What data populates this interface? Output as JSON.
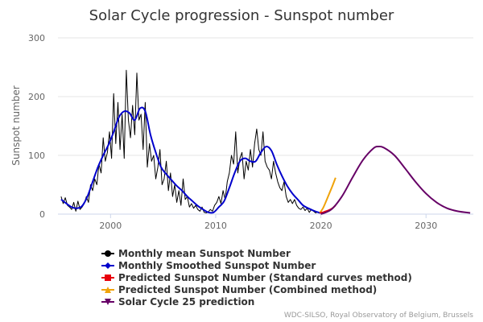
{
  "chart_data": {
    "type": "line",
    "title": "Solar Cycle progression - Sunspot number",
    "xlabel": "",
    "ylabel": "Sunspot number",
    "xlim": [
      1995.0,
      2034.5
    ],
    "ylim": [
      0,
      300
    ],
    "x_ticks": [
      "2000",
      "2010",
      "2020",
      "2030"
    ],
    "x_tick_values": [
      2000,
      2010,
      2020,
      2030
    ],
    "y_ticks": [
      "0",
      "100",
      "200",
      "300"
    ],
    "y_tick_values": [
      0,
      100,
      200,
      300
    ],
    "grid": true,
    "legend_position": "bottom-center",
    "credits": "WDC-SILSO, Royal Observatory of Belgium, Brussels",
    "series": [
      {
        "name": "Monthly mean Sunspot Number",
        "color": "#000000",
        "marker": "circle",
        "x": [
          1995.3,
          1995.5,
          1995.7,
          1995.9,
          1996.1,
          1996.3,
          1996.5,
          1996.7,
          1996.9,
          1997.1,
          1997.3,
          1997.5,
          1997.7,
          1997.9,
          1998.1,
          1998.3,
          1998.5,
          1998.7,
          1998.9,
          1999.1,
          1999.3,
          1999.5,
          1999.7,
          1999.9,
          2000.1,
          2000.3,
          2000.5,
          2000.7,
          2000.9,
          2001.1,
          2001.3,
          2001.5,
          2001.7,
          2001.9,
          2002.1,
          2002.3,
          2002.5,
          2002.7,
          2002.9,
          2003.1,
          2003.3,
          2003.5,
          2003.7,
          2003.9,
          2004.1,
          2004.3,
          2004.5,
          2004.7,
          2004.9,
          2005.1,
          2005.3,
          2005.5,
          2005.7,
          2005.9,
          2006.1,
          2006.3,
          2006.5,
          2006.7,
          2006.9,
          2007.1,
          2007.3,
          2007.5,
          2007.7,
          2007.9,
          2008.1,
          2008.3,
          2008.5,
          2008.7,
          2008.9,
          2009.1,
          2009.3,
          2009.5,
          2009.7,
          2009.9,
          2010.1,
          2010.3,
          2010.5,
          2010.7,
          2010.9,
          2011.1,
          2011.3,
          2011.5,
          2011.7,
          2011.9,
          2012.1,
          2012.3,
          2012.5,
          2012.7,
          2012.9,
          2013.1,
          2013.3,
          2013.5,
          2013.7,
          2013.9,
          2014.1,
          2014.3,
          2014.5,
          2014.7,
          2014.9,
          2015.1,
          2015.3,
          2015.5,
          2015.7,
          2015.9,
          2016.1,
          2016.3,
          2016.5,
          2016.7,
          2016.9,
          2017.1,
          2017.3,
          2017.5,
          2017.7,
          2017.9,
          2018.1,
          2018.3,
          2018.5,
          2018.7,
          2018.9,
          2019.1,
          2019.3,
          2019.5,
          2019.7,
          2019.9
        ],
        "values": [
          30,
          18,
          28,
          15,
          12,
          8,
          20,
          5,
          22,
          8,
          12,
          18,
          30,
          20,
          50,
          40,
          60,
          50,
          85,
          70,
          130,
          90,
          105,
          140,
          95,
          205,
          120,
          190,
          110,
          170,
          95,
          245,
          160,
          130,
          185,
          135,
          240,
          160,
          170,
          110,
          190,
          80,
          120,
          90,
          100,
          60,
          80,
          110,
          50,
          60,
          90,
          40,
          70,
          30,
          50,
          20,
          40,
          15,
          60,
          25,
          30,
          12,
          18,
          10,
          15,
          8,
          5,
          12,
          3,
          2,
          4,
          8,
          5,
          15,
          20,
          30,
          18,
          40,
          25,
          55,
          70,
          100,
          85,
          140,
          70,
          95,
          105,
          60,
          90,
          75,
          110,
          80,
          120,
          145,
          110,
          100,
          140,
          90,
          80,
          75,
          60,
          90,
          70,
          55,
          45,
          40,
          55,
          30,
          20,
          25,
          18,
          25,
          15,
          10,
          8,
          12,
          6,
          10,
          3,
          8,
          5,
          2,
          4,
          2
        ],
        "x_raw_note": ""
      },
      {
        "name": "Monthly Smoothed Sunspot Number",
        "color": "#0000cc",
        "marker": "diamond",
        "x": [
          1995.3,
          1995.8,
          1996.3,
          1996.8,
          1997.3,
          1997.8,
          1998.3,
          1998.8,
          1999.3,
          1999.8,
          2000.3,
          2000.8,
          2001.3,
          2001.8,
          2002.3,
          2002.8,
          2003.3,
          2003.8,
          2004.3,
          2004.8,
          2005.3,
          2005.8,
          2006.3,
          2006.8,
          2007.3,
          2007.8,
          2008.3,
          2008.8,
          2009.3,
          2009.8,
          2010.3,
          2010.8,
          2011.3,
          2011.8,
          2012.3,
          2012.8,
          2013.3,
          2013.8,
          2014.3,
          2014.8,
          2015.3,
          2015.8,
          2016.3,
          2016.8,
          2017.3,
          2017.8,
          2018.3,
          2018.8,
          2019.3,
          2019.9
        ],
        "values": [
          25,
          18,
          12,
          10,
          14,
          30,
          55,
          80,
          100,
          118,
          140,
          165,
          175,
          172,
          160,
          180,
          175,
          135,
          105,
          80,
          68,
          58,
          48,
          40,
          30,
          22,
          14,
          8,
          3,
          3,
          12,
          22,
          45,
          70,
          90,
          95,
          90,
          90,
          105,
          115,
          108,
          85,
          65,
          48,
          35,
          25,
          15,
          10,
          6,
          2
        ]
      },
      {
        "name": "Predicted Sunspot Number (Standard curves method)",
        "color": "#e8000b",
        "marker": "square",
        "x": [
          2019.9,
          2020.2,
          2020.5,
          2020.8,
          2021.1,
          2021.4
        ],
        "values": [
          2,
          3,
          5,
          7,
          10,
          15
        ]
      },
      {
        "name": "Predicted Sunspot Number (Combined method)",
        "color": "#f0a30a",
        "marker": "triangle",
        "x": [
          2019.9,
          2020.2,
          2020.5,
          2020.8,
          2021.1,
          2021.4
        ],
        "values": [
          2,
          10,
          22,
          35,
          48,
          62
        ]
      },
      {
        "name": "Solar Cycle 25 prediction",
        "color": "#660066",
        "marker": "triangle-down",
        "x": [
          2020.0,
          2021.0,
          2022.0,
          2023.0,
          2024.0,
          2025.0,
          2025.5,
          2026.0,
          2027.0,
          2028.0,
          2029.0,
          2030.0,
          2031.0,
          2032.0,
          2033.0,
          2034.2
        ],
        "values": [
          0,
          8,
          30,
          62,
          92,
          112,
          115,
          113,
          100,
          78,
          55,
          35,
          20,
          10,
          5,
          2
        ]
      }
    ]
  }
}
